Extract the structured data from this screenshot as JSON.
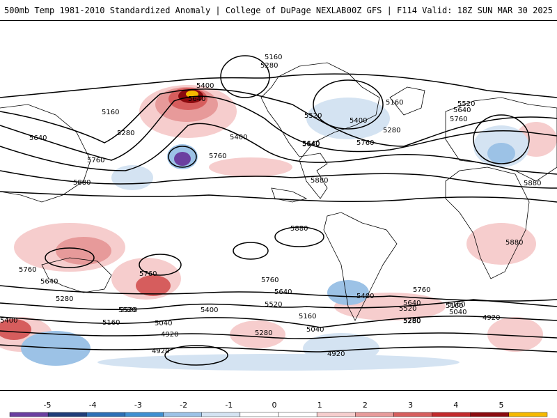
{
  "header": {
    "title": "500mb Temp 1981-2010 Standardized Anomaly | College of DuPage NEXLAB",
    "run_info": "00Z GFS | F114 Valid: 18Z SUN MAR 30 2025"
  },
  "colors": {
    "background": "#ffffff",
    "coast": "#000000",
    "contour": "#000000",
    "max_marker": "#ffd800"
  },
  "colorbar": {
    "ticks": [
      "-5",
      "-4",
      "-3",
      "-2",
      "-1",
      "0",
      "1",
      "2",
      "3",
      "4",
      "5"
    ],
    "colors": [
      "#6b3fa0",
      "#1f3c78",
      "#2d6fb5",
      "#3f8fd0",
      "#9cc2e6",
      "#d4e3f2",
      "#ffffff",
      "#ffffff",
      "#f6cdcd",
      "#e79a9a",
      "#d65d5d",
      "#c2282b",
      "#8b0a0f",
      "#f5b800"
    ]
  },
  "contours": {
    "labels": [
      "5160",
      "5280",
      "5400",
      "5520",
      "5640",
      "5760",
      "5880",
      "5160",
      "5280",
      "5640",
      "5760",
      "5880",
      "5400",
      "5640",
      "5760",
      "5880",
      "5520",
      "5640",
      "5760",
      "5160",
      "5280",
      "5400",
      "5640",
      "5880",
      "5160",
      "5280",
      "5520",
      "5640",
      "5760",
      "5880",
      "5760",
      "5640",
      "5760",
      "5400",
      "5520",
      "5040",
      "5160",
      "5280",
      "5400",
      "4920",
      "5040",
      "5160",
      "5280",
      "4920",
      "4920",
      "5400",
      "5520",
      "5640",
      "5760",
      "5040",
      "5160",
      "5280",
      "5520",
      "4920"
    ]
  },
  "map": {
    "projection": "global-equirectangular",
    "field": "500mb height contours with temperature anomaly shading"
  }
}
